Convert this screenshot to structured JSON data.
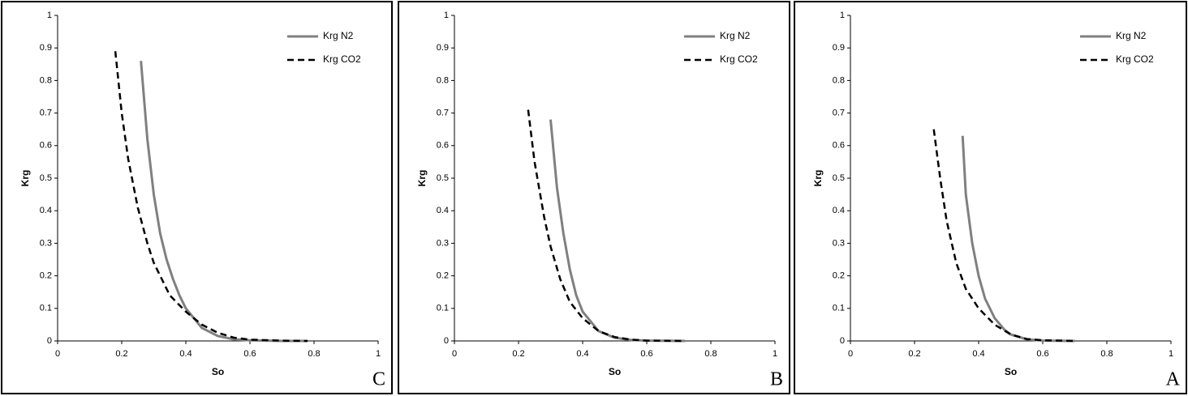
{
  "chart_data": [
    {
      "type": "line",
      "x_label": "So",
      "y_label": "Krg",
      "label": "C",
      "xlim": [
        0,
        1
      ],
      "ylim": [
        0,
        1
      ],
      "xticks": [
        0,
        0.2,
        0.4,
        0.6,
        0.8,
        1
      ],
      "yticks": [
        0,
        0.1,
        0.2,
        0.3,
        0.4,
        0.5,
        0.6,
        0.7,
        0.8,
        0.9,
        1
      ],
      "series": [
        {
          "name": "Krg N2",
          "color": "#808080",
          "style": "solid",
          "x": [
            0.26,
            0.28,
            0.3,
            0.32,
            0.34,
            0.36,
            0.38,
            0.4,
            0.45,
            0.5,
            0.55,
            0.6,
            0.7,
            0.78
          ],
          "values": [
            0.86,
            0.62,
            0.45,
            0.33,
            0.25,
            0.19,
            0.14,
            0.1,
            0.04,
            0.015,
            0.005,
            0.002,
            0,
            0
          ]
        },
        {
          "name": "Krg CO2",
          "color": "#000000",
          "style": "dashed",
          "x": [
            0.18,
            0.2,
            0.22,
            0.25,
            0.28,
            0.3,
            0.35,
            0.4,
            0.45,
            0.5,
            0.55,
            0.6,
            0.7,
            0.78
          ],
          "values": [
            0.89,
            0.7,
            0.56,
            0.41,
            0.3,
            0.24,
            0.14,
            0.09,
            0.05,
            0.025,
            0.01,
            0.004,
            0.001,
            0
          ]
        }
      ]
    },
    {
      "type": "line",
      "x_label": "So",
      "y_label": "Krg",
      "label": "B",
      "xlim": [
        0,
        1
      ],
      "ylim": [
        0,
        1
      ],
      "xticks": [
        0,
        0.2,
        0.4,
        0.6,
        0.8,
        1
      ],
      "yticks": [
        0,
        0.1,
        0.2,
        0.3,
        0.4,
        0.5,
        0.6,
        0.7,
        0.8,
        0.9,
        1
      ],
      "series": [
        {
          "name": "Krg N2",
          "color": "#808080",
          "style": "solid",
          "x": [
            0.3,
            0.32,
            0.34,
            0.36,
            0.38,
            0.4,
            0.45,
            0.5,
            0.55,
            0.6,
            0.72
          ],
          "values": [
            0.68,
            0.47,
            0.33,
            0.22,
            0.14,
            0.09,
            0.03,
            0.01,
            0.003,
            0.001,
            0
          ]
        },
        {
          "name": "Krg CO2",
          "color": "#000000",
          "style": "dashed",
          "x": [
            0.23,
            0.25,
            0.28,
            0.3,
            0.33,
            0.36,
            0.4,
            0.45,
            0.5,
            0.55,
            0.6,
            0.72
          ],
          "values": [
            0.71,
            0.55,
            0.38,
            0.29,
            0.19,
            0.12,
            0.07,
            0.03,
            0.012,
            0.004,
            0.001,
            0
          ]
        }
      ]
    },
    {
      "type": "line",
      "x_label": "So",
      "y_label": "Krg",
      "label": "A",
      "xlim": [
        0,
        1
      ],
      "ylim": [
        0,
        1
      ],
      "xticks": [
        0,
        0.2,
        0.4,
        0.6,
        0.8,
        1
      ],
      "yticks": [
        0,
        0.1,
        0.2,
        0.3,
        0.4,
        0.5,
        0.6,
        0.7,
        0.8,
        0.9,
        1
      ],
      "series": [
        {
          "name": "Krg N2",
          "color": "#808080",
          "style": "solid",
          "x": [
            0.35,
            0.36,
            0.38,
            0.4,
            0.42,
            0.45,
            0.48,
            0.5,
            0.55,
            0.6,
            0.7
          ],
          "values": [
            0.63,
            0.45,
            0.3,
            0.2,
            0.13,
            0.07,
            0.035,
            0.02,
            0.005,
            0.001,
            0
          ]
        },
        {
          "name": "Krg CO2",
          "color": "#000000",
          "style": "dashed",
          "x": [
            0.26,
            0.28,
            0.3,
            0.33,
            0.36,
            0.4,
            0.45,
            0.5,
            0.55,
            0.6,
            0.7
          ],
          "values": [
            0.65,
            0.5,
            0.37,
            0.24,
            0.16,
            0.1,
            0.05,
            0.02,
            0.006,
            0.002,
            0
          ]
        }
      ]
    }
  ]
}
